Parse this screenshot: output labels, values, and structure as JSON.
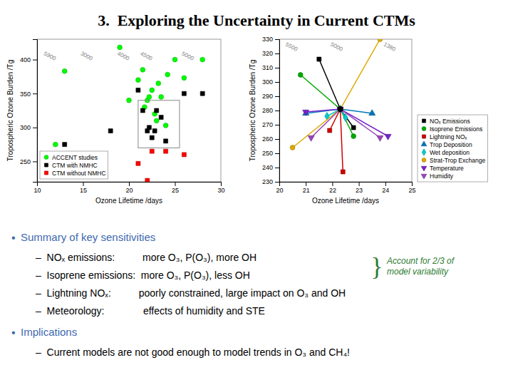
{
  "title": "3.  Exploring the Uncertainty in Current CTMs",
  "text": [
    {
      "text": "Summary of key sensitivities",
      "bullet": "•",
      "color": "#4169b0"
    },
    {
      "text": "–  NOₓ emissions:          more O₃, P(O₃), more OH",
      "bullet": null,
      "color": "#000000"
    },
    {
      "text": "–  Isoprene emissions:  more O₃, P(O₃), less OH",
      "bullet": null,
      "color": "#000000"
    },
    {
      "text": "–  Lightning NOₓ:          poorly constrained, large impact on O₃ and OH",
      "bullet": null,
      "color": "#000000"
    },
    {
      "text": "–  Meteorology:              effects of humidity and STE",
      "bullet": null,
      "color": "#000000"
    },
    {
      "text": "Implications",
      "bullet": "•",
      "color": "#4169b0"
    },
    {
      "text": "–  Current models are not good enough to model trends in O₃ and CH₄!",
      "bullet": null,
      "color": "#000000"
    }
  ],
  "side_note": {
    "brace": "}",
    "lines": [
      "Account for 2/3 of",
      "model variability"
    ],
    "color": "#2e7d32"
  },
  "chart_data": [
    {
      "type": "scatter",
      "xlabel": "Ozone Lifetime /days",
      "ylabel": "Tropospheric Ozone Burden /Tg",
      "xlim": [
        10,
        30
      ],
      "ylim": [
        220,
        430
      ],
      "xticks": [
        10,
        15,
        20,
        25,
        30
      ],
      "yticks": [
        250,
        300,
        350,
        400
      ],
      "legend": "lower left",
      "series": [
        {
          "name": "ACCENT studies",
          "color": "#00ff00",
          "marker": "circle",
          "x": [
            12,
            13,
            19,
            20,
            21,
            21.5,
            21.7,
            22,
            22.2,
            22.5,
            22.8,
            23,
            23.2,
            23.5,
            24,
            24.2,
            25,
            26,
            28
          ],
          "values": [
            275,
            383,
            418,
            340,
            370,
            385,
            330,
            340,
            345,
            355,
            320,
            310,
            365,
            345,
            303,
            378,
            400,
            373,
            400
          ]
        },
        {
          "name": "CTM with NMHC",
          "color": "#000000",
          "marker": "square",
          "x": [
            13,
            18,
            21,
            21.5,
            22,
            22.2,
            22.5,
            22.8,
            23,
            23.5,
            24,
            26,
            28
          ],
          "values": [
            275,
            295,
            355,
            325,
            295,
            300,
            285,
            295,
            325,
            315,
            280,
            350,
            350
          ]
        },
        {
          "name": "CTM without NMHC",
          "color": "#ff0000",
          "marker": "square",
          "x": [
            21,
            22,
            22.5,
            24,
            26
          ],
          "values": [
            247,
            222,
            265,
            265,
            260
          ]
        }
      ],
      "box": {
        "x": 21,
        "y": 270,
        "width": 4.5,
        "height": 70
      },
      "annotations": [
        {
          "text": "5900",
          "x": 11.5,
          "y": 408
        },
        {
          "text": "3000",
          "x": 15.5,
          "y": 408
        },
        {
          "text": "4000",
          "x": 19.5,
          "y": 408
        },
        {
          "text": "4500",
          "x": 22,
          "y": 408
        },
        {
          "text": "5000",
          "x": 26.5,
          "y": 408
        }
      ]
    },
    {
      "type": "line",
      "xlabel": "Ozone Lifetime /days",
      "ylabel": "Tropospheric Ozone Burden /Tg",
      "xlim": [
        20,
        25
      ],
      "ylim": [
        230,
        330
      ],
      "xticks": [
        20,
        21,
        22,
        23,
        24,
        25
      ],
      "yticks": [
        230,
        240,
        250,
        260,
        270,
        280,
        290,
        300,
        310,
        320,
        330
      ],
      "legend": "right",
      "center": {
        "x": 22.3,
        "y": 281
      },
      "series": [
        {
          "name": "NOₓ Emissions",
          "color": "#000000",
          "marker": "square",
          "x": [
            21.5,
            22.3,
            22.8
          ],
          "values": [
            316,
            281,
            268
          ]
        },
        {
          "name": "Isoprene Emissions",
          "color": "#00aa00",
          "marker": "circle",
          "x": [
            20.8,
            22.3,
            22.8
          ],
          "values": [
            305,
            281,
            262
          ]
        },
        {
          "name": "Lightning NOₓ",
          "color": "#cc0000",
          "marker": "square",
          "x": [
            21.9,
            22.3,
            22.4
          ],
          "values": [
            266,
            281,
            237
          ]
        },
        {
          "name": "Trop Deposition",
          "color": "#0077bb",
          "marker": "triangle-up",
          "x": [
            21.0,
            22.3,
            23.5
          ],
          "values": [
            278,
            281,
            278
          ]
        },
        {
          "name": "Wet deposition",
          "color": "#00cccc",
          "marker": "diamond",
          "x": [
            21.8,
            22.3,
            22.5
          ],
          "values": [
            276,
            281,
            275
          ]
        },
        {
          "name": "Strat-Trop Exchange",
          "color": "#ddaa00",
          "marker": "circle",
          "x": [
            20.5,
            22.3,
            23.8
          ],
          "values": [
            254,
            281,
            330
          ]
        },
        {
          "name": "Temperature",
          "color": "#7722cc",
          "marker": "triangle-down",
          "x": [
            21.0,
            22.3,
            24.1
          ],
          "values": [
            279,
            281,
            262
          ]
        },
        {
          "name": "Humidity",
          "color": "#9944bb",
          "marker": "triangle-down",
          "x": [
            21.2,
            22.3,
            23.8
          ],
          "values": [
            261,
            281,
            261
          ]
        }
      ],
      "annotations": [
        {
          "text": "5500",
          "x": 20.5,
          "y": 326
        },
        {
          "text": "5000",
          "x": 22.2,
          "y": 326
        },
        {
          "text": "1380",
          "x": 24.2,
          "y": 326
        }
      ]
    }
  ]
}
